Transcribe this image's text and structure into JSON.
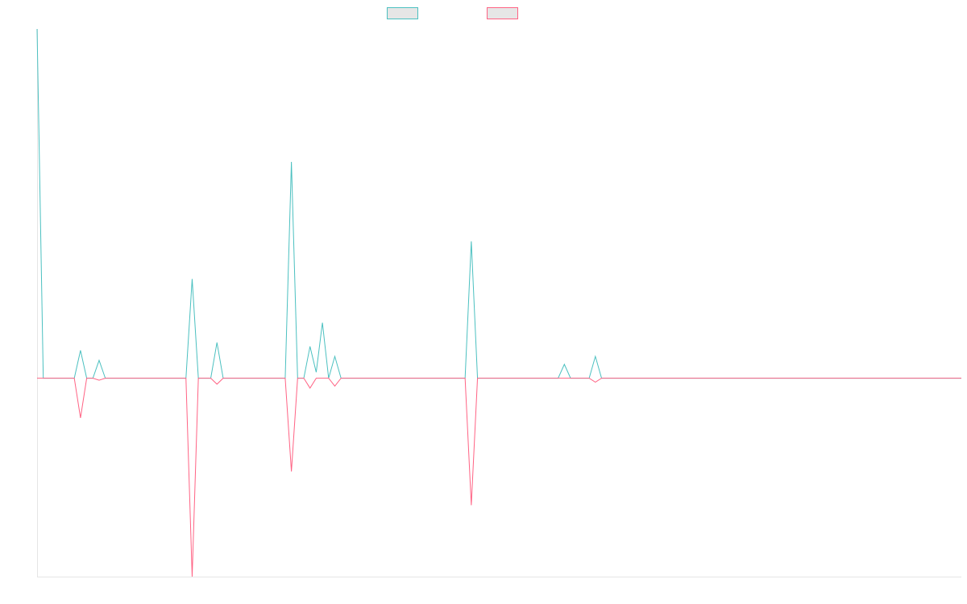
{
  "chart_data": {
    "type": "line",
    "title": "",
    "xlabel": "",
    "ylabel": "",
    "ylim": [
      -1.0,
      1.76
    ],
    "legend": "top-center",
    "grid": false,
    "x_count": 150,
    "series": [
      {
        "color": "#4bc0c0",
        "fill": "none",
        "values": {
          "0": 1.76,
          "7": 0.14,
          "10": 0.09,
          "25": 0.5,
          "29": 0.18,
          "41": 1.09,
          "44": 0.16,
          "45": 0.03,
          "46": 0.28,
          "48": 0.11,
          "70": 0.69,
          "85": 0.07,
          "90": 0.11
        }
      },
      {
        "color": "#ff6384",
        "fill": "none",
        "values": {
          "7": -0.2,
          "10": -0.01,
          "25": -1.0,
          "29": -0.03,
          "41": -0.47,
          "44": -0.05,
          "48": -0.04,
          "70": -0.64,
          "90": -0.02
        }
      }
    ]
  }
}
